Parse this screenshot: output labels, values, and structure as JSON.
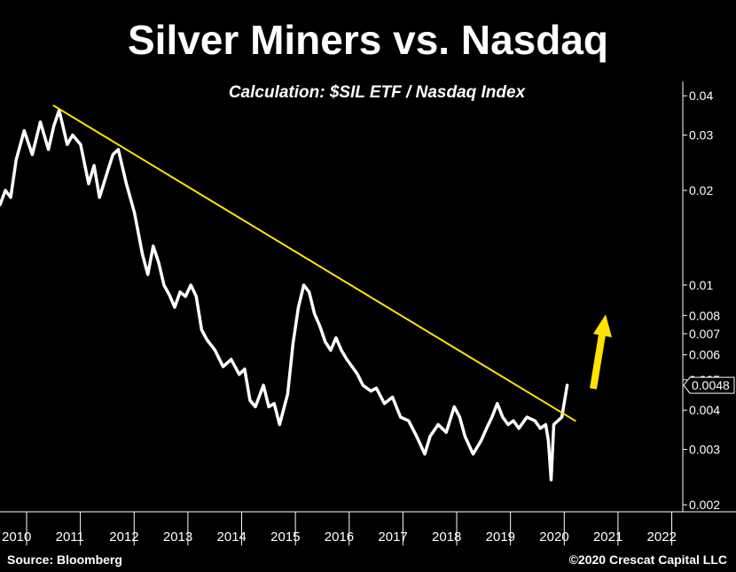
{
  "chart_data": {
    "type": "line",
    "title": "Silver Miners vs. Nasdaq",
    "subtitle": "Calculation: $SIL ETF / Nasdaq Index",
    "y_scale": "log",
    "ylim": [
      0.0019,
      0.043
    ],
    "xlim": [
      2010.0,
      2022.7
    ],
    "y_ticks": [
      0.002,
      0.003,
      0.004,
      0.005,
      0.006,
      0.007,
      0.008,
      0.01,
      0.02,
      0.03,
      0.04
    ],
    "y_tick_labels": [
      "0.002",
      "0.003",
      "0.004",
      "0.005",
      "0.006",
      "0.007",
      "0.008",
      "0.01",
      "0.02",
      "0.03",
      "0.04"
    ],
    "x_ticks": [
      2010,
      2011,
      2012,
      2013,
      2014,
      2015,
      2016,
      2017,
      2018,
      2019,
      2020,
      2021,
      2022
    ],
    "x_tick_labels": [
      "2010",
      "2011",
      "2012",
      "2013",
      "2014",
      "2015",
      "2016",
      "2017",
      "2018",
      "2019",
      "2020",
      "2021",
      "2022"
    ],
    "last_value_label": "0.0048",
    "last_value": 0.0048,
    "series": [
      {
        "color": "#ffffff",
        "x": [
          2010.0,
          2010.1,
          2010.2,
          2010.3,
          2010.45,
          2010.6,
          2010.75,
          2010.9,
          2011.0,
          2011.1,
          2011.25,
          2011.35,
          2011.5,
          2011.65,
          2011.75,
          2011.85,
          2012.0,
          2012.1,
          2012.2,
          2012.35,
          2012.5,
          2012.65,
          2012.75,
          2012.85,
          2012.95,
          2013.05,
          2013.15,
          2013.25,
          2013.35,
          2013.45,
          2013.55,
          2013.65,
          2013.75,
          2013.85,
          2014.0,
          2014.15,
          2014.3,
          2014.45,
          2014.55,
          2014.65,
          2014.75,
          2014.9,
          2015.0,
          2015.1,
          2015.2,
          2015.35,
          2015.45,
          2015.55,
          2015.65,
          2015.75,
          2015.85,
          2015.95,
          2016.05,
          2016.15,
          2016.25,
          2016.35,
          2016.45,
          2016.55,
          2016.65,
          2016.75,
          2016.9,
          2017.0,
          2017.15,
          2017.3,
          2017.45,
          2017.6,
          2017.75,
          2017.9,
          2018.0,
          2018.15,
          2018.3,
          2018.45,
          2018.55,
          2018.65,
          2018.8,
          2018.95,
          2019.05,
          2019.15,
          2019.25,
          2019.35,
          2019.45,
          2019.55,
          2019.65,
          2019.8,
          2019.95,
          2020.05,
          2020.15,
          2020.2,
          2020.25,
          2020.3,
          2020.45,
          2020.55
        ],
        "y": [
          0.018,
          0.02,
          0.019,
          0.025,
          0.031,
          0.026,
          0.033,
          0.027,
          0.032,
          0.036,
          0.028,
          0.03,
          0.028,
          0.021,
          0.024,
          0.019,
          0.023,
          0.026,
          0.027,
          0.021,
          0.017,
          0.0125,
          0.0108,
          0.0133,
          0.0118,
          0.01,
          0.0093,
          0.0085,
          0.0095,
          0.0092,
          0.01,
          0.0092,
          0.0072,
          0.0067,
          0.0062,
          0.0055,
          0.0058,
          0.0052,
          0.0054,
          0.0043,
          0.0041,
          0.0048,
          0.0041,
          0.0042,
          0.0036,
          0.0045,
          0.0065,
          0.0085,
          0.01,
          0.0095,
          0.0081,
          0.0074,
          0.0066,
          0.0062,
          0.0068,
          0.0062,
          0.0058,
          0.0055,
          0.0052,
          0.0048,
          0.0046,
          0.0047,
          0.0042,
          0.0044,
          0.0038,
          0.0037,
          0.0033,
          0.0029,
          0.0033,
          0.0036,
          0.0034,
          0.0041,
          0.0038,
          0.0033,
          0.0029,
          0.0032,
          0.0035,
          0.0038,
          0.0042,
          0.0038,
          0.0036,
          0.0037,
          0.0035,
          0.0038,
          0.0037,
          0.0035,
          0.0036,
          0.0032,
          0.0024,
          0.0036,
          0.0038,
          0.0048
        ]
      },
      {
        "color": "#ffe400",
        "x": [
          2011.0,
          2020.7
        ],
        "y": [
          0.0372,
          0.0037
        ]
      }
    ],
    "annotations": [
      {
        "type": "arrow",
        "color": "#ffe400",
        "direction": "up"
      }
    ],
    "grid": false
  },
  "footer": {
    "source": "Source: Bloomberg",
    "copyright": "©2020 Crescat Capital LLC"
  }
}
